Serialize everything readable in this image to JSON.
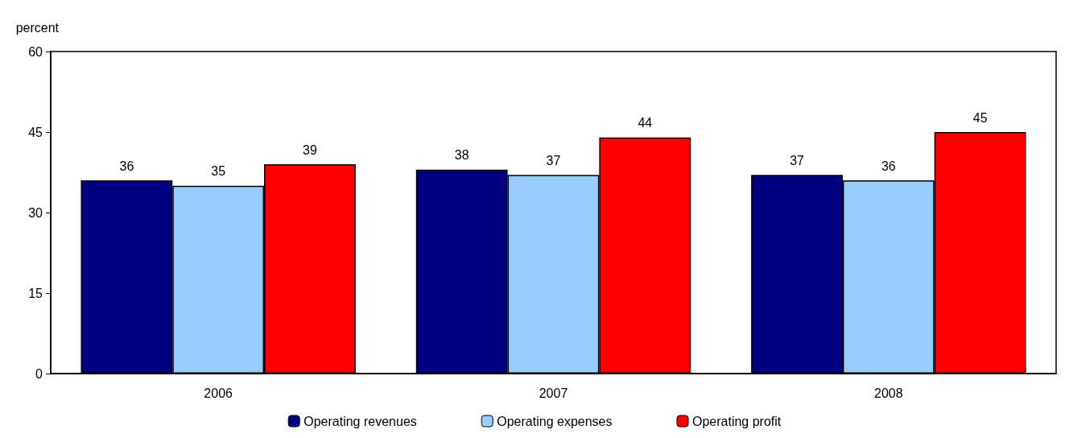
{
  "chart_data": {
    "type": "bar",
    "ylabel": "percent",
    "categories": [
      "2006",
      "2007",
      "2008"
    ],
    "series": [
      {
        "name": "Operating revenues",
        "color": "#000080",
        "values": [
          36,
          38,
          37
        ]
      },
      {
        "name": "Operating expenses",
        "color": "#99ccff",
        "values": [
          35,
          37,
          36
        ]
      },
      {
        "name": "Operating profit",
        "color": "#ff0000",
        "values": [
          39,
          44,
          45
        ]
      }
    ],
    "ylim": [
      0,
      60
    ],
    "yticks": [
      0,
      15,
      30,
      45,
      60
    ],
    "grid": false,
    "legend": "bottom",
    "data_labels": true
  }
}
